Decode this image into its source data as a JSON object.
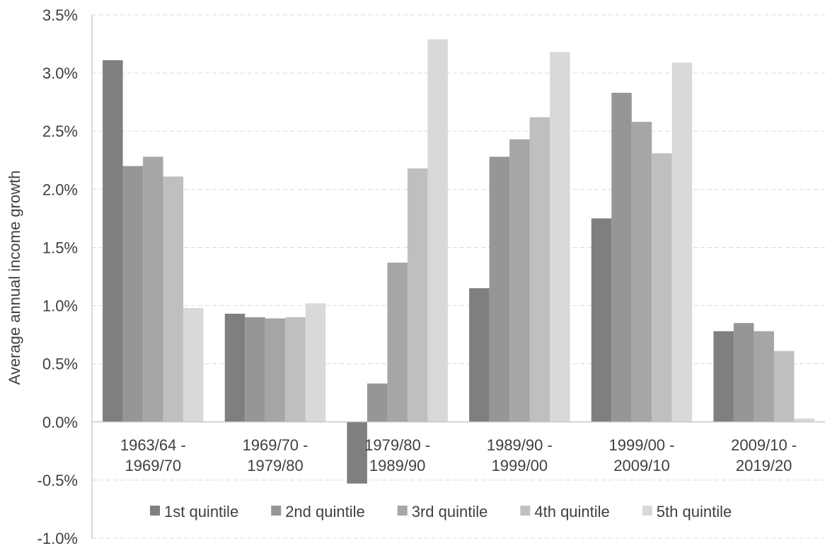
{
  "chart_data": {
    "type": "bar",
    "title": "",
    "xlabel": "",
    "ylabel": "Average annual income growth",
    "ylim": [
      -1.0,
      3.5
    ],
    "yticks": [
      -1.0,
      -0.5,
      0.0,
      0.5,
      1.0,
      1.5,
      2.0,
      2.5,
      3.0,
      3.5
    ],
    "ytick_labels": [
      "-1.0%",
      "-0.5%",
      "0.0%",
      "0.5%",
      "1.0%",
      "1.5%",
      "2.0%",
      "2.5%",
      "3.0%",
      "3.5%"
    ],
    "grid": true,
    "legend_position": "bottom",
    "categories": [
      [
        "1963/64 -",
        "1969/70"
      ],
      [
        "1969/70 -",
        "1979/80"
      ],
      [
        "1979/80 -",
        "1989/90"
      ],
      [
        "1989/90 -",
        "1999/00"
      ],
      [
        "1999/00 -",
        "2009/10"
      ],
      [
        "2009/10 -",
        "2019/20"
      ]
    ],
    "series": [
      {
        "name": "1st quintile",
        "color": "#7f7f7f",
        "values": [
          3.11,
          0.93,
          -0.53,
          1.15,
          1.75,
          0.78
        ]
      },
      {
        "name": "2nd quintile",
        "color": "#969696",
        "values": [
          2.2,
          0.9,
          0.33,
          2.28,
          2.83,
          0.85
        ]
      },
      {
        "name": "3rd quintile",
        "color": "#a6a6a6",
        "values": [
          2.28,
          0.89,
          1.37,
          2.43,
          2.58,
          0.78
        ]
      },
      {
        "name": "4th quintile",
        "color": "#bfbfbf",
        "values": [
          2.11,
          0.9,
          2.18,
          2.62,
          2.31,
          0.61
        ]
      },
      {
        "name": "5th quintile",
        "color": "#d9d9d9",
        "values": [
          0.98,
          1.02,
          3.29,
          3.18,
          3.09,
          0.03
        ]
      }
    ]
  }
}
